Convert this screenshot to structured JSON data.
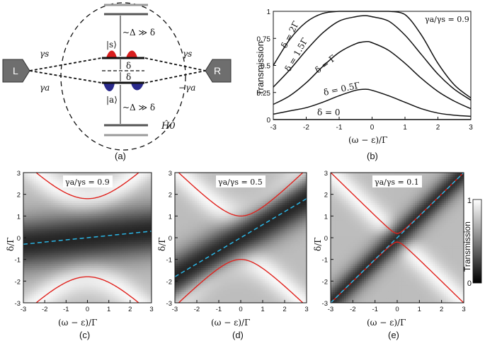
{
  "panel_a": {
    "caption": "(a)",
    "lead_left": "L",
    "lead_right": "R",
    "gamma_s_left": "γs",
    "gamma_a_left": "γa",
    "gamma_s_right": "γs",
    "gamma_a_right": "−γa",
    "state_s": "|s⟩",
    "state_a": "|a⟩",
    "delta_top": "δ",
    "delta_bottom": "δ",
    "gap_top": "~Δ ≫ δ",
    "gap_bottom": "~Δ ≫ δ",
    "hamiltonian": "Ĥ0",
    "colors": {
      "s_lobe": "#d81e1e",
      "a_lobe": "#2a2a8c",
      "level_grey": "#9a9a9a"
    }
  },
  "panel_b": {
    "caption": "(b)",
    "ratio_label": "γa/γs = 0.9",
    "curve_labels": [
      "δ = 2Γ",
      "δ = 1.5Γ",
      "δ = Γ",
      "δ = 0.5Γ",
      "δ = 0"
    ]
  },
  "panel_c": {
    "caption": "(c)",
    "ratio_label": "γa/γs = 0.9"
  },
  "panel_d": {
    "caption": "(d)",
    "ratio_label": "γa/γs = 0.5"
  },
  "panel_e": {
    "caption": "(e)",
    "ratio_label": "γa/γs = 0.1"
  },
  "colorbar": {
    "label": "Transmission",
    "max": "1",
    "min": "0"
  },
  "chart_data": [
    {
      "type": "line",
      "panel": "(b)",
      "title": "",
      "xlabel": "(ω − ε)/Γ",
      "ylabel": "Transmission",
      "xlim": [
        -3,
        3
      ],
      "ylim": [
        0,
        1
      ],
      "xticks": [
        "-3",
        "-2",
        "-1",
        "0",
        "1",
        "2",
        "3"
      ],
      "yticks": [
        "0",
        "0.25",
        "0.5",
        "0.75",
        "1"
      ],
      "x": [
        -3,
        -2.5,
        -2,
        -1.5,
        -1,
        -0.5,
        -0.2,
        0,
        0.5,
        1,
        1.5,
        2,
        2.5,
        3
      ],
      "series": [
        {
          "name": "δ = 2Γ",
          "values": [
            0.5,
            0.74,
            0.9,
            0.98,
            1.0,
            1.0,
            1.0,
            1.0,
            1.0,
            0.97,
            0.78,
            0.52,
            0.32,
            0.2
          ]
        },
        {
          "name": "δ = 1.5Γ",
          "values": [
            0.3,
            0.46,
            0.64,
            0.8,
            0.91,
            0.95,
            0.96,
            0.95,
            0.91,
            0.78,
            0.6,
            0.42,
            0.28,
            0.18
          ]
        },
        {
          "name": "δ = Γ",
          "values": [
            0.14,
            0.22,
            0.34,
            0.49,
            0.62,
            0.7,
            0.72,
            0.71,
            0.64,
            0.52,
            0.38,
            0.26,
            0.17,
            0.1
          ]
        },
        {
          "name": "δ = 0.5Γ",
          "values": [
            0.05,
            0.08,
            0.11,
            0.16,
            0.22,
            0.27,
            0.28,
            0.27,
            0.22,
            0.16,
            0.1,
            0.06,
            0.04,
            0.03
          ]
        },
        {
          "name": "δ = 0",
          "values": [
            0,
            0,
            0,
            0,
            0,
            0,
            0,
            0,
            0,
            0,
            0,
            0,
            0,
            0
          ]
        }
      ]
    },
    {
      "type": "heatmap",
      "panel": "(c)",
      "ratio": 0.9,
      "xlabel": "(ω − ε)/Γ",
      "ylabel": "δ/Γ",
      "xlim": [
        -3,
        3
      ],
      "ylim": [
        -3,
        3
      ],
      "xticks": [
        "-3",
        "-2",
        "-1",
        "0",
        "1",
        "2",
        "3"
      ],
      "yticks": [
        "-3",
        "-2",
        "-1",
        "0",
        "1",
        "2",
        "3"
      ],
      "red_curve_vertex": 1.8,
      "dashed_line_slope": 0.1
    },
    {
      "type": "heatmap",
      "panel": "(d)",
      "ratio": 0.5,
      "xlabel": "(ω − ε)/Γ",
      "ylabel": "δ/Γ",
      "xlim": [
        -3,
        3
      ],
      "ylim": [
        -3,
        3
      ],
      "xticks": [
        "-3",
        "-2",
        "-1",
        "0",
        "1",
        "2",
        "3"
      ],
      "yticks": [
        "-3",
        "-2",
        "-1",
        "0",
        "1",
        "2",
        "3"
      ],
      "red_curve_vertex": 1.0,
      "dashed_line_slope": 0.6
    },
    {
      "type": "heatmap",
      "panel": "(e)",
      "ratio": 0.1,
      "xlabel": "(ω − ε)/Γ",
      "ylabel": "δ/Γ",
      "xlim": [
        -3,
        3
      ],
      "ylim": [
        -3,
        3
      ],
      "xticks": [
        "-3",
        "-2",
        "-1",
        "0",
        "1",
        "2",
        "3"
      ],
      "yticks": [
        "-3",
        "-2",
        "-1",
        "0",
        "1",
        "2",
        "3"
      ],
      "red_curve_vertex": 0.2,
      "dashed_line_slope": 1.0
    }
  ]
}
